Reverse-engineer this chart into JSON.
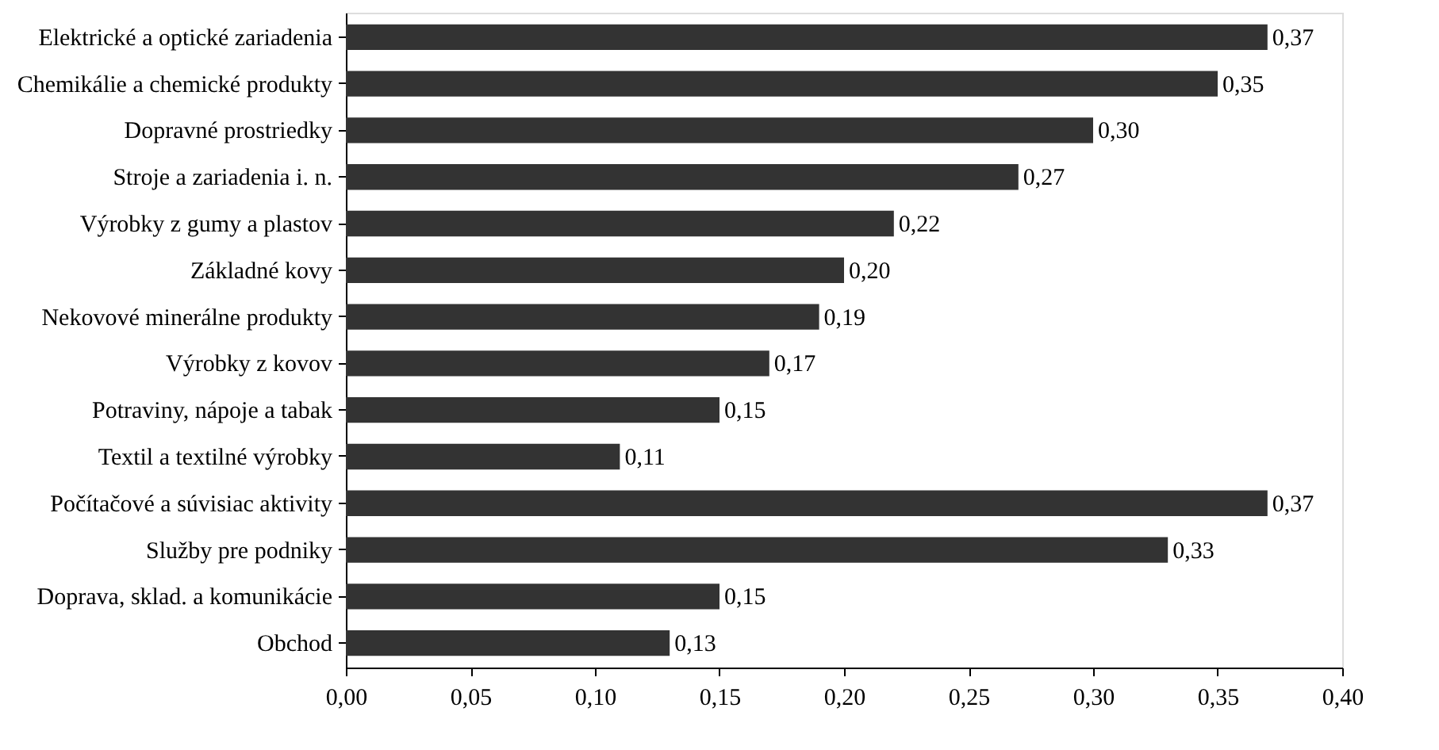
{
  "chart_data": {
    "type": "bar",
    "orientation": "horizontal",
    "categories": [
      "Elektrické a optické zariadenia",
      "Chemikálie a chemické produkty",
      "Dopravné prostriedky",
      "Stroje a zariadenia i. n.",
      "Výrobky z gumy a plastov",
      "Základné kovy",
      "Nekovové minerálne produkty",
      "Výrobky z kovov",
      "Potraviny, nápoje a tabak",
      "Textil a textilné výrobky",
      "Počítačové a súvisiac aktivity",
      "Služby pre podniky",
      "Doprava, sklad. a komunikácie",
      "Obchod"
    ],
    "values": [
      0.37,
      0.35,
      0.3,
      0.27,
      0.22,
      0.2,
      0.19,
      0.17,
      0.15,
      0.11,
      0.37,
      0.33,
      0.15,
      0.13
    ],
    "value_labels": [
      "0,37",
      "0,35",
      "0,30",
      "0,27",
      "0,22",
      "0,20",
      "0,19",
      "0,17",
      "0,15",
      "0,11",
      "0,37",
      "0,33",
      "0,15",
      "0,13"
    ],
    "color": "#333333",
    "xlim": [
      0,
      0.4
    ],
    "xticks": [
      {
        "value": 0,
        "label": "0,00"
      },
      {
        "value": 0.05,
        "label": "0,05"
      },
      {
        "value": 0.1,
        "label": "0,10"
      },
      {
        "value": 0.15,
        "label": "0,15"
      },
      {
        "value": 0.2,
        "label": "0,20"
      },
      {
        "value": 0.25,
        "label": "0,25"
      },
      {
        "value": 0.3,
        "label": "0,30"
      },
      {
        "value": 0.35,
        "label": "0,35"
      },
      {
        "value": 0.4,
        "label": "0,40"
      }
    ],
    "grid": false
  }
}
